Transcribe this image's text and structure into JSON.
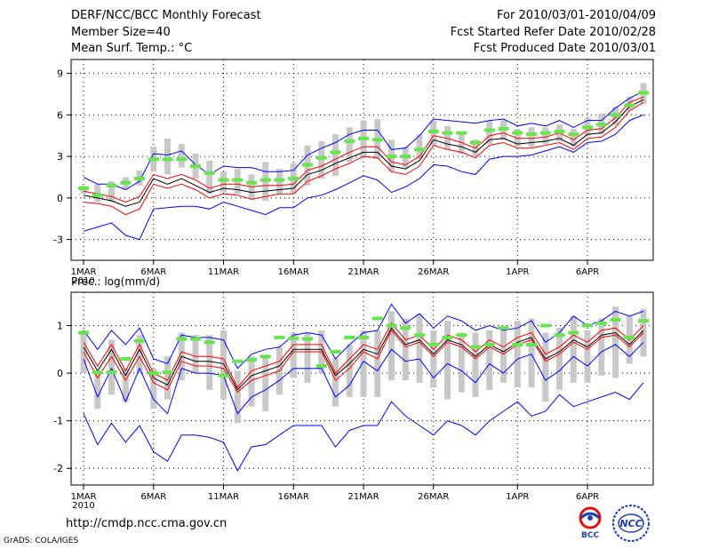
{
  "header": {
    "title": "DERF/NCC/BCC Monthly Forecast",
    "member_size": "Member Size=40",
    "variable": "Mean Surf. Temp.: °C",
    "period": "For 2010/03/01-2010/04/09",
    "refer_date": "Fcst Started Refer Date 2010/02/28",
    "produced_date": "Fcst Produced Date 2010/03/01"
  },
  "footer": {
    "url": "http://cmdp.ncc.cma.gov.cn",
    "credit": "GrADS: COLA/IGES",
    "logo_bcc": "BCC",
    "logo_ncc": "NCC"
  },
  "colors": {
    "envelope": "#0000ff",
    "spread": "#ff0000",
    "mean": "#000000",
    "box": "#c8c8c8",
    "median": "#66e64d"
  },
  "chart_data": [
    {
      "type": "line",
      "title": "Mean Surf. Temp.: °C",
      "ylim": [
        -4.5,
        10
      ],
      "yticks": [
        -3,
        0,
        3,
        6,
        9
      ],
      "x_tick_index": [
        0,
        5,
        10,
        15,
        20,
        25,
        31,
        36
      ],
      "x_tick_labels": [
        "1MAR",
        "6MAR",
        "11MAR",
        "16MAR",
        "21MAR",
        "26MAR",
        "1APR",
        "6APR"
      ],
      "x_year_label": "2010",
      "series": [
        {
          "name": "max",
          "values": [
            1.5,
            1,
            1,
            0.6,
            1.2,
            3.2,
            3.1,
            3.4,
            2.4,
            1.7,
            2.3,
            2.2,
            2.2,
            1.9,
            1.9,
            2,
            3.1,
            3.6,
            4,
            4.6,
            4.9,
            4.9,
            3.5,
            3.6,
            4.5,
            5.7,
            5.6,
            5.5,
            5.4,
            5.6,
            5.7,
            5.2,
            5.4,
            5.2,
            5.6,
            5.1,
            5.6,
            5.6,
            6.5,
            7.2,
            7.7
          ]
        },
        {
          "name": "upper",
          "values": [
            0.5,
            0.3,
            0.1,
            -0.3,
            0.1,
            1.7,
            1.4,
            1.7,
            1.3,
            0.7,
            1,
            1,
            0.8,
            0.9,
            0.9,
            1,
            2,
            2.3,
            2.8,
            3.3,
            3.7,
            3.7,
            2.6,
            2.4,
            3,
            4.5,
            4.3,
            4,
            3.6,
            4.5,
            4.7,
            4.3,
            4.3,
            4.4,
            4.7,
            4.2,
            4.9,
            5,
            5.8,
            6.9,
            7.3
          ]
        },
        {
          "name": "mean",
          "values": [
            0.2,
            0,
            -0.2,
            -0.6,
            -0.3,
            1.4,
            1,
            1.4,
            0.9,
            0.4,
            0.7,
            0.6,
            0.4,
            0.5,
            0.6,
            0.7,
            1.7,
            2,
            2.5,
            2.9,
            3.3,
            3.3,
            2.3,
            2.1,
            2.7,
            4.2,
            3.9,
            3.7,
            3.3,
            4.2,
            4.3,
            3.9,
            4,
            4.1,
            4.3,
            3.8,
            4.6,
            4.7,
            5.5,
            6.6,
            7.1
          ]
        },
        {
          "name": "lower",
          "values": [
            -0.3,
            -0.4,
            -0.6,
            -1.2,
            -0.8,
            1,
            0.7,
            1,
            0.6,
            0,
            0.3,
            0.2,
            -0.1,
            0.1,
            0.3,
            0.3,
            1.2,
            1.6,
            2.1,
            2.5,
            3,
            2.9,
            1.9,
            1.7,
            2.3,
            3.8,
            3.5,
            3.3,
            2.9,
            3.8,
            4,
            3.6,
            3.6,
            3.8,
            4,
            3.5,
            4.3,
            4.4,
            5.1,
            6.3,
            6.9
          ]
        },
        {
          "name": "min",
          "values": [
            -2.4,
            -2.1,
            -1.8,
            -2.7,
            -3,
            -0.8,
            -0.7,
            -0.6,
            -0.6,
            -0.8,
            -0.3,
            -0.6,
            -0.9,
            -1.2,
            -0.7,
            -0.7,
            0,
            0.2,
            0.6,
            1.1,
            1.6,
            1.3,
            0.4,
            0.8,
            1.4,
            2.4,
            2.3,
            1.9,
            1.7,
            2.8,
            3,
            3,
            3.1,
            3.4,
            3.7,
            3.3,
            4,
            4.1,
            4.6,
            5.6,
            6
          ]
        }
      ],
      "boxes": {
        "low": [
          0.3,
          -0.3,
          -0.3,
          0.6,
          0.9,
          1.9,
          1.7,
          2.2,
          1.4,
          0.3,
          0.4,
          0.3,
          -0.1,
          -0.2,
          0.3,
          0.3,
          0.9,
          1.4,
          1.6,
          2.6,
          2.9,
          2.8,
          1.9,
          2.2,
          2.8,
          3.8,
          3.5,
          3.2,
          3,
          3.9,
          4.2,
          3.7,
          3.7,
          3.9,
          4.1,
          3.7,
          4.5,
          4.6,
          5.3,
          6.3,
          6.8
        ],
        "high": [
          0.9,
          1,
          1.2,
          1.5,
          2,
          3.7,
          4.3,
          3.9,
          3.2,
          2.7,
          1.9,
          2.1,
          1.7,
          2.6,
          2.1,
          2.5,
          3.8,
          4.1,
          4.6,
          5.1,
          5.6,
          5.7,
          4.2,
          3.7,
          4.6,
          5.6,
          5.2,
          4.6,
          4.2,
          5.6,
          5.6,
          5,
          5.1,
          5.1,
          5.3,
          5,
          5.8,
          6.1,
          6.6,
          7.3,
          8.3
        ],
        "median": [
          0.7,
          0.2,
          0.9,
          1.1,
          1.4,
          2.8,
          2.8,
          2.8,
          2.3,
          1.8,
          1.3,
          1.3,
          1.1,
          1.3,
          1.3,
          1.4,
          2.4,
          2.9,
          3.3,
          4.1,
          4.3,
          4.2,
          3,
          3,
          3.5,
          4.8,
          4.7,
          4.7,
          4,
          4.9,
          5,
          4.7,
          4.6,
          4.7,
          4.8,
          4.6,
          5.1,
          5.3,
          6,
          6.7,
          7.6
        ]
      }
    },
    {
      "type": "line",
      "title": "Prec.: log(mm/d)",
      "ylim": [
        -2.35,
        1.7
      ],
      "yticks": [
        -2,
        -1,
        0,
        1
      ],
      "x_tick_index": [
        0,
        5,
        10,
        15,
        20,
        25,
        31,
        36
      ],
      "x_tick_labels": [
        "1MAR",
        "6MAR",
        "11MAR",
        "16MAR",
        "21MAR",
        "26MAR",
        "1APR",
        "6APR"
      ],
      "x_year_label": "2010",
      "series": [
        {
          "name": "max",
          "values": [
            0.9,
            0.5,
            0.9,
            0.6,
            0.95,
            0.3,
            0.2,
            0.8,
            0.75,
            0.75,
            0.7,
            0.1,
            0.4,
            0.5,
            0.55,
            0.8,
            0.85,
            0.8,
            0.3,
            0.6,
            0.85,
            0.9,
            1.45,
            1.05,
            1.25,
            0.95,
            1.2,
            1.1,
            0.9,
            1,
            0.9,
            0.95,
            1.1,
            0.65,
            0.85,
            1.2,
            1,
            1.1,
            1.3,
            1.2,
            1.3
          ]
        },
        {
          "name": "upper",
          "values": [
            0.65,
            0.15,
            0.6,
            0.05,
            0.6,
            0,
            -0.15,
            0.45,
            0.35,
            0.35,
            0.3,
            -0.3,
            0.05,
            0.15,
            0.25,
            0.6,
            0.6,
            0.6,
            0,
            0.3,
            0.6,
            0.5,
            1.05,
            0.7,
            0.8,
            0.5,
            0.8,
            0.7,
            0.45,
            0.7,
            0.55,
            0.75,
            0.85,
            0.4,
            0.55,
            0.8,
            0.65,
            0.9,
            0.95,
            0.7,
            1
          ]
        },
        {
          "name": "mean",
          "values": [
            0.55,
            0.05,
            0.5,
            -0.05,
            0.5,
            -0.1,
            -0.25,
            0.35,
            0.25,
            0.25,
            0.2,
            -0.35,
            -0.05,
            0.05,
            0.15,
            0.5,
            0.5,
            0.5,
            -0.05,
            0.2,
            0.5,
            0.4,
            0.95,
            0.6,
            0.7,
            0.4,
            0.7,
            0.6,
            0.35,
            0.6,
            0.45,
            0.65,
            0.75,
            0.3,
            0.45,
            0.7,
            0.55,
            0.8,
            0.85,
            0.6,
            0.9
          ]
        },
        {
          "name": "lower",
          "values": [
            0.45,
            -0.1,
            0.35,
            -0.15,
            0.35,
            -0.2,
            -0.35,
            0.25,
            0.15,
            0.15,
            0.1,
            -0.4,
            -0.15,
            -0.05,
            0.05,
            0.45,
            0.45,
            0.45,
            -0.15,
            0.1,
            0.45,
            0.3,
            0.9,
            0.55,
            0.65,
            0.35,
            0.65,
            0.55,
            0.3,
            0.55,
            0.4,
            0.6,
            0.7,
            0.25,
            0.4,
            0.65,
            0.5,
            0.75,
            0.8,
            0.55,
            0.85
          ]
        },
        {
          "name": "min",
          "values": [
            0.3,
            -0.5,
            0.1,
            -0.6,
            0.1,
            -0.55,
            -0.85,
            0.1,
            0.0,
            0.0,
            -0.05,
            -0.85,
            -0.5,
            -0.35,
            -0.15,
            0.1,
            0.1,
            0.1,
            -0.5,
            -0.25,
            0.25,
            0.05,
            0.5,
            0.25,
            0.3,
            -0.1,
            0.2,
            0.05,
            -0.2,
            0.2,
            0,
            0.3,
            0.4,
            -0.15,
            0.05,
            0.35,
            0.15,
            0.45,
            0.6,
            0.35,
            0.65
          ]
        },
        {
          "name": "extreme_min",
          "values": [
            -0.85,
            -1.5,
            -1.05,
            -1.45,
            -1.1,
            -1.65,
            -1.85,
            -1.3,
            -1.3,
            -1.35,
            -1.45,
            -2.05,
            -1.55,
            -1.5,
            -1.3,
            -1.1,
            -1.1,
            -1.1,
            -1.55,
            -1.2,
            -1.1,
            -1.1,
            -0.6,
            -0.9,
            -1.1,
            -1.3,
            -1,
            -1.1,
            -1.3,
            -1,
            -0.8,
            -0.6,
            -0.9,
            -0.8,
            -0.45,
            -0.7,
            -0.6,
            -0.5,
            -0.4,
            -0.55,
            -0.2
          ]
        }
      ],
      "boxes": {
        "low": [
          0,
          -0.75,
          -0.45,
          -0.6,
          0,
          -0.75,
          -0.55,
          -0.15,
          0,
          -0.35,
          -0.55,
          -1.05,
          -0.7,
          -0.8,
          -0.45,
          -0.1,
          -0.2,
          0,
          -0.7,
          -0.5,
          -0.5,
          -0.5,
          -0.15,
          -0.15,
          -0.2,
          -0.3,
          -0.55,
          -0.4,
          -0.5,
          -0.35,
          -0.2,
          -0.3,
          -0.3,
          -0.6,
          -0.35,
          -0.2,
          -0.2,
          -0.05,
          -0.1,
          0.2,
          0.35
        ],
        "high": [
          0.9,
          0.05,
          0.7,
          0.1,
          0.8,
          0.1,
          0.35,
          0.85,
          0.8,
          0.8,
          0.9,
          0.05,
          0.35,
          0.35,
          0.55,
          0.85,
          0.85,
          0.9,
          0.3,
          0.6,
          0.9,
          0.9,
          1.3,
          1.15,
          1.25,
          0.9,
          1.1,
          0.85,
          0.85,
          0.9,
          0.9,
          1.1,
          1.15,
          0.85,
          0.95,
          1.2,
          0.9,
          1.15,
          1.4,
          1.2,
          1.35
        ],
        "median": [
          0.85,
          0.02,
          0.02,
          0.3,
          0.68,
          0,
          0.02,
          0.72,
          0.72,
          0.65,
          -0.05,
          0.25,
          0.28,
          0.35,
          0.75,
          0.73,
          0.72,
          0.15,
          0.45,
          0.75,
          0.75,
          1.15,
          1,
          0.95,
          0.8,
          0.6,
          0.75,
          0.8,
          0.55,
          0.6,
          0.95,
          0.6,
          0.6,
          1,
          0.8,
          0.85,
          1,
          1.05,
          1.12,
          0.75,
          1.1
        ]
      }
    }
  ]
}
